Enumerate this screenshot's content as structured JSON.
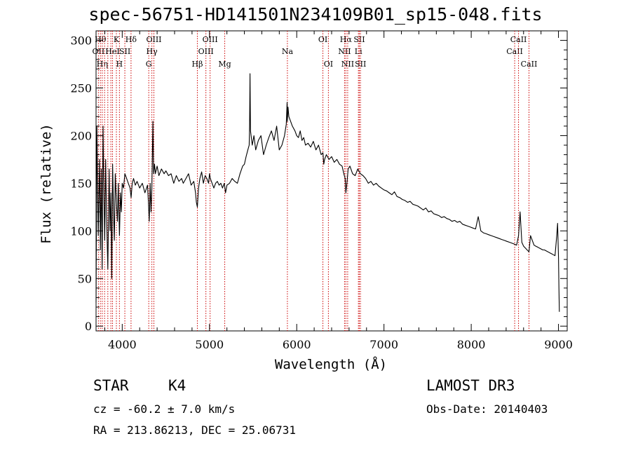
{
  "chart_data": {
    "type": "line",
    "title": "spec-56751-HD141501N234109B01_sp15-048.fits",
    "xlabel": "Wavelength (Å)",
    "ylabel": "Flux (relative)",
    "xlim": [
      3700,
      9100
    ],
    "ylim": [
      -5,
      310
    ],
    "xticks": [
      4000,
      5000,
      6000,
      7000,
      8000,
      9000
    ],
    "xtick_labels": [
      "4000",
      "5000",
      "6000",
      "7000",
      "8000",
      "9000"
    ],
    "yticks": [
      0,
      50,
      100,
      150,
      200,
      250,
      300
    ],
    "ytick_labels": [
      "0",
      "50",
      "100",
      "150",
      "200",
      "250",
      "300"
    ],
    "series": [
      {
        "name": "flux",
        "x": [
          3700,
          3710,
          3725,
          3740,
          3750,
          3760,
          3770,
          3780,
          3790,
          3800,
          3810,
          3820,
          3835,
          3850,
          3860,
          3870,
          3880,
          3890,
          3900,
          3910,
          3920,
          3933,
          3945,
          3955,
          3968,
          3980,
          3990,
          4000,
          4015,
          4030,
          4050,
          4070,
          4090,
          4102,
          4115,
          4130,
          4150,
          4170,
          4200,
          4230,
          4260,
          4290,
          4300,
          4310,
          4320,
          4330,
          4340,
          4352,
          4360,
          4370,
          4380,
          4400,
          4420,
          4450,
          4480,
          4500,
          4530,
          4560,
          4590,
          4620,
          4650,
          4680,
          4700,
          4730,
          4760,
          4790,
          4820,
          4840,
          4850,
          4861,
          4875,
          4890,
          4910,
          4930,
          4950,
          4970,
          4990,
          5000,
          5010,
          5030,
          5050,
          5070,
          5090,
          5110,
          5130,
          5150,
          5170,
          5184,
          5200,
          5230,
          5260,
          5290,
          5320,
          5350,
          5380,
          5400,
          5420,
          5440,
          5455,
          5460,
          5465,
          5470,
          5490,
          5510,
          5530,
          5560,
          5590,
          5620,
          5650,
          5680,
          5710,
          5740,
          5770,
          5800,
          5830,
          5860,
          5880,
          5890,
          5893,
          5900,
          5910,
          5930,
          5950,
          5980,
          6000,
          6020,
          6040,
          6060,
          6080,
          6100,
          6130,
          6160,
          6190,
          6220,
          6250,
          6280,
          6300,
          6310,
          6320,
          6340,
          6370,
          6400,
          6430,
          6460,
          6490,
          6520,
          6540,
          6555,
          6563,
          6575,
          6590,
          6610,
          6640,
          6670,
          6700,
          6730,
          6760,
          6790,
          6820,
          6850,
          6880,
          6910,
          6940,
          6970,
          7000,
          7030,
          7060,
          7090,
          7120,
          7150,
          7180,
          7210,
          7240,
          7270,
          7300,
          7330,
          7360,
          7390,
          7420,
          7450,
          7480,
          7510,
          7540,
          7570,
          7600,
          7630,
          7660,
          7690,
          7720,
          7750,
          7780,
          7810,
          7840,
          7870,
          7900,
          7930,
          7960,
          7990,
          8020,
          8050,
          8080,
          8110,
          8140,
          8170,
          8200,
          8230,
          8260,
          8290,
          8320,
          8350,
          8380,
          8410,
          8440,
          8470,
          8498,
          8520,
          8542,
          8560,
          8580,
          8600,
          8620,
          8640,
          8662,
          8680,
          8700,
          8720,
          8740,
          8760,
          8780,
          8800,
          8820,
          8840,
          8860,
          8880,
          8900,
          8920,
          8940,
          8960,
          8980,
          8990,
          9000,
          9005,
          9010
        ],
        "values": [
          25,
          210,
          95,
          175,
          80,
          165,
          60,
          210,
          140,
          90,
          175,
          120,
          60,
          165,
          100,
          140,
          50,
          170,
          120,
          90,
          160,
          130,
          110,
          150,
          95,
          140,
          120,
          150,
          145,
          160,
          155,
          150,
          145,
          135,
          150,
          155,
          148,
          152,
          145,
          150,
          140,
          148,
          130,
          110,
          150,
          120,
          145,
          215,
          160,
          170,
          160,
          168,
          158,
          165,
          160,
          163,
          158,
          160,
          150,
          158,
          152,
          155,
          150,
          155,
          160,
          148,
          152,
          140,
          130,
          125,
          145,
          155,
          162,
          150,
          158,
          155,
          150,
          160,
          155,
          150,
          145,
          150,
          152,
          148,
          150,
          145,
          150,
          140,
          148,
          150,
          155,
          152,
          150,
          160,
          168,
          170,
          178,
          185,
          190,
          210,
          265,
          205,
          190,
          200,
          185,
          195,
          200,
          180,
          190,
          198,
          205,
          195,
          210,
          185,
          190,
          200,
          212,
          235,
          215,
          230,
          220,
          215,
          210,
          205,
          200,
          198,
          205,
          195,
          198,
          190,
          192,
          188,
          194,
          185,
          190,
          180,
          182,
          170,
          175,
          180,
          175,
          178,
          172,
          175,
          170,
          168,
          160,
          155,
          140,
          150,
          165,
          168,
          160,
          158,
          165,
          160,
          158,
          155,
          150,
          152,
          148,
          150,
          147,
          145,
          143,
          142,
          140,
          138,
          141,
          136,
          135,
          133,
          132,
          130,
          131,
          128,
          127,
          126,
          124,
          122,
          124,
          120,
          121,
          118,
          117,
          116,
          114,
          115,
          113,
          112,
          110,
          111,
          109,
          110,
          107,
          106,
          105,
          104,
          103,
          102,
          115,
          100,
          98,
          97,
          96,
          95,
          94,
          93,
          92,
          91,
          90,
          89,
          88,
          87,
          86,
          85,
          95,
          120,
          88,
          84,
          82,
          80,
          78,
          95,
          90,
          85,
          84,
          83,
          82,
          81,
          80,
          80,
          79,
          78,
          77,
          76,
          75,
          74,
          95,
          108,
          72,
          40,
          15
        ]
      }
    ],
    "line_markers": [
      {
        "wl": 3727,
        "name": "OII",
        "row": 2
      },
      {
        "wl": 3750,
        "name": "Hθ",
        "row": 1
      },
      {
        "wl": 3771,
        "name": "Hη",
        "row": 3
      },
      {
        "wl": 3798,
        "name": "",
        "row": 0
      },
      {
        "wl": 3835,
        "name": "",
        "row": 0
      },
      {
        "wl": 3870,
        "name": "",
        "row": 0
      },
      {
        "wl": 3889,
        "name": "HeI",
        "row": 2
      },
      {
        "wl": 3933,
        "name": "K",
        "row": 1
      },
      {
        "wl": 3968,
        "name": "H",
        "row": 3
      },
      {
        "wl": 4030,
        "name": "SII",
        "row": 2
      },
      {
        "wl": 4101,
        "name": "Hδ",
        "row": 1
      },
      {
        "wl": 4304,
        "name": "G",
        "row": 3
      },
      {
        "wl": 4340,
        "name": "Hγ",
        "row": 2
      },
      {
        "wl": 4363,
        "name": "OIII",
        "row": 1
      },
      {
        "wl": 4861,
        "name": "Hβ",
        "row": 3
      },
      {
        "wl": 4959,
        "name": "OIII",
        "row": 2
      },
      {
        "wl": 5007,
        "name": "OIII",
        "row": 1
      },
      {
        "wl": 5175,
        "name": "Mg",
        "row": 3
      },
      {
        "wl": 5893,
        "name": "Na",
        "row": 2
      },
      {
        "wl": 6300,
        "name": "OI",
        "row": 1
      },
      {
        "wl": 6363,
        "name": "OI",
        "row": 3
      },
      {
        "wl": 6548,
        "name": "NII",
        "row": 2
      },
      {
        "wl": 6563,
        "name": "Hα",
        "row": 1
      },
      {
        "wl": 6584,
        "name": "NII",
        "row": 3
      },
      {
        "wl": 6707,
        "name": "Li",
        "row": 2
      },
      {
        "wl": 6717,
        "name": "SII",
        "row": 1
      },
      {
        "wl": 6731,
        "name": "SII",
        "row": 3
      },
      {
        "wl": 8498,
        "name": "CaII",
        "row": 2
      },
      {
        "wl": 8542,
        "name": "CaII",
        "row": 1
      },
      {
        "wl": 8662,
        "name": "CaII",
        "row": 3
      }
    ]
  },
  "info": {
    "class": "STAR",
    "subclass": "K4",
    "survey": "LAMOST DR3",
    "cz": "cz = -60.2 ± 7.0 km/s",
    "obsdate": "Obs-Date: 20140403",
    "coords": "RA = 213.86213, DEC =  25.06731"
  },
  "colors": {
    "spectrum": "#000000",
    "marker": "#cc0000",
    "background": "#ffffff"
  }
}
